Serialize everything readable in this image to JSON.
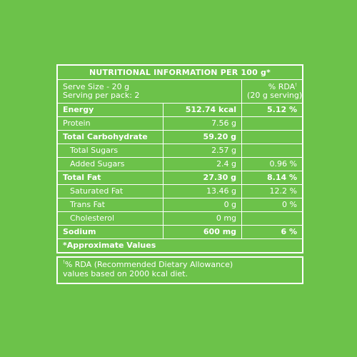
{
  "header": {
    "title": "NUTRITIONAL INFORMATION PER 100 g*"
  },
  "serving": {
    "size": "Serve Size - 20 g",
    "per_pack": "Serving per pack: 2",
    "rda_label": "% RDA",
    "rda_mark": "!",
    "rda_sub": "(20 g serving)"
  },
  "rows": [
    {
      "name": "Energy",
      "value": "512.74 kcal",
      "rda": "5.12 %"
    },
    {
      "name": "Protein",
      "value": "7.56 g",
      "rda": ""
    },
    {
      "name": "Total Carbohydrate",
      "value": "59.20 g",
      "rda": ""
    },
    {
      "name": "Total Sugars",
      "value": "2.57 g",
      "rda": ""
    },
    {
      "name": "Added Sugars",
      "value": "2.4 g",
      "rda": "0.96 %"
    },
    {
      "name": "Total Fat",
      "value": "27.30 g",
      "rda": "8.14 %"
    },
    {
      "name": "Saturated Fat",
      "value": "13.46 g",
      "rda": "12.2 %"
    },
    {
      "name": "Trans Fat",
      "value": "0 g",
      "rda": "0 %"
    },
    {
      "name": "Cholesterol",
      "value": "0 mg",
      "rda": ""
    },
    {
      "name": "Sodium",
      "value": "600 mg",
      "rda": "6 %"
    }
  ],
  "footer": {
    "approx": "*Approximate Values"
  },
  "note": {
    "mark": "!",
    "line1": "% RDA (Recommended Dietary Allowance)",
    "line2": "values based on 2000 kcal diet."
  },
  "colors": {
    "background": "#6cc24a",
    "text": "#ffffff",
    "border": "#ffffff"
  }
}
